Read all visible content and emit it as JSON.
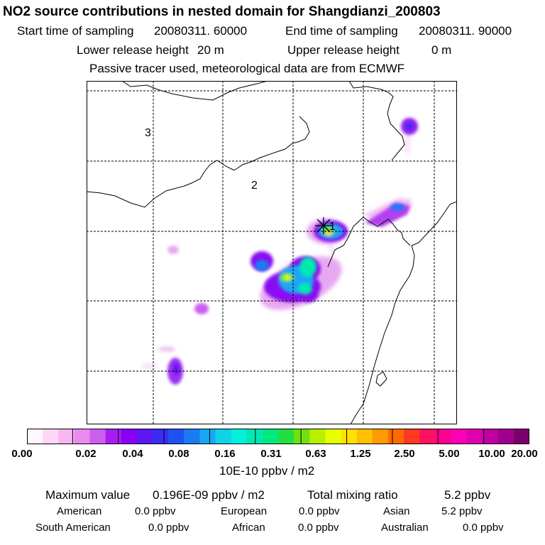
{
  "header": {
    "title": "NO2 source contributions in nested domain for Shangdianzi_200803",
    "start_label": "Start time of sampling",
    "start_value": "20080311. 60000",
    "end_label": "End time of sampling",
    "end_value": "20080311. 90000",
    "lower_label": "Lower release height",
    "lower_value": "20 m",
    "upper_label": "Upper release height",
    "upper_value": "0 m",
    "note": "Passive tracer used, meteorological data are from ECMWF"
  },
  "map": {
    "region_labels": [
      "1",
      "2",
      "3"
    ]
  },
  "colorbar": {
    "tick_labels": [
      "0.00",
      "0.02",
      "0.04",
      "0.08",
      "0.16",
      "0.31",
      "0.63",
      "1.25",
      "2.50",
      "5.00",
      "10.00",
      "20.00"
    ],
    "colors": [
      "#fff7fd",
      "#fdd8f6",
      "#f8b6f0",
      "#e88bec",
      "#cc5ef0",
      "#a81cf2",
      "#8a00f6",
      "#5e16f0",
      "#3a2cf0",
      "#1d52f2",
      "#1b7cf2",
      "#1aa6f2",
      "#0dd2e8",
      "#00f0dc",
      "#00e8b0",
      "#00e880",
      "#20e040",
      "#70e010",
      "#b8f000",
      "#e8ff00",
      "#ffe000",
      "#ffc000",
      "#ff9a00",
      "#ff6a00",
      "#ff3a20",
      "#ff1060",
      "#ff0090",
      "#ff00b8",
      "#e000b0",
      "#c000a0",
      "#a00090",
      "#7a006e"
    ],
    "unit": "10E-10 ppbv / m2"
  },
  "stats": {
    "max_label": "Maximum value",
    "max_value": "0.196E-09 ppbv / m2",
    "total_label": "Total mixing ratio",
    "total_value": "5.2 ppbv",
    "regions": [
      {
        "name": "American",
        "value": "0.0 ppbv"
      },
      {
        "name": "European",
        "value": "0.0 ppbv"
      },
      {
        "name": "Asian",
        "value": "5.2 ppbv"
      },
      {
        "name": "South American",
        "value": "0.0 ppbv"
      },
      {
        "name": "African",
        "value": "0.0 ppbv"
      },
      {
        "name": "Australian",
        "value": "0.0 ppbv"
      }
    ]
  }
}
